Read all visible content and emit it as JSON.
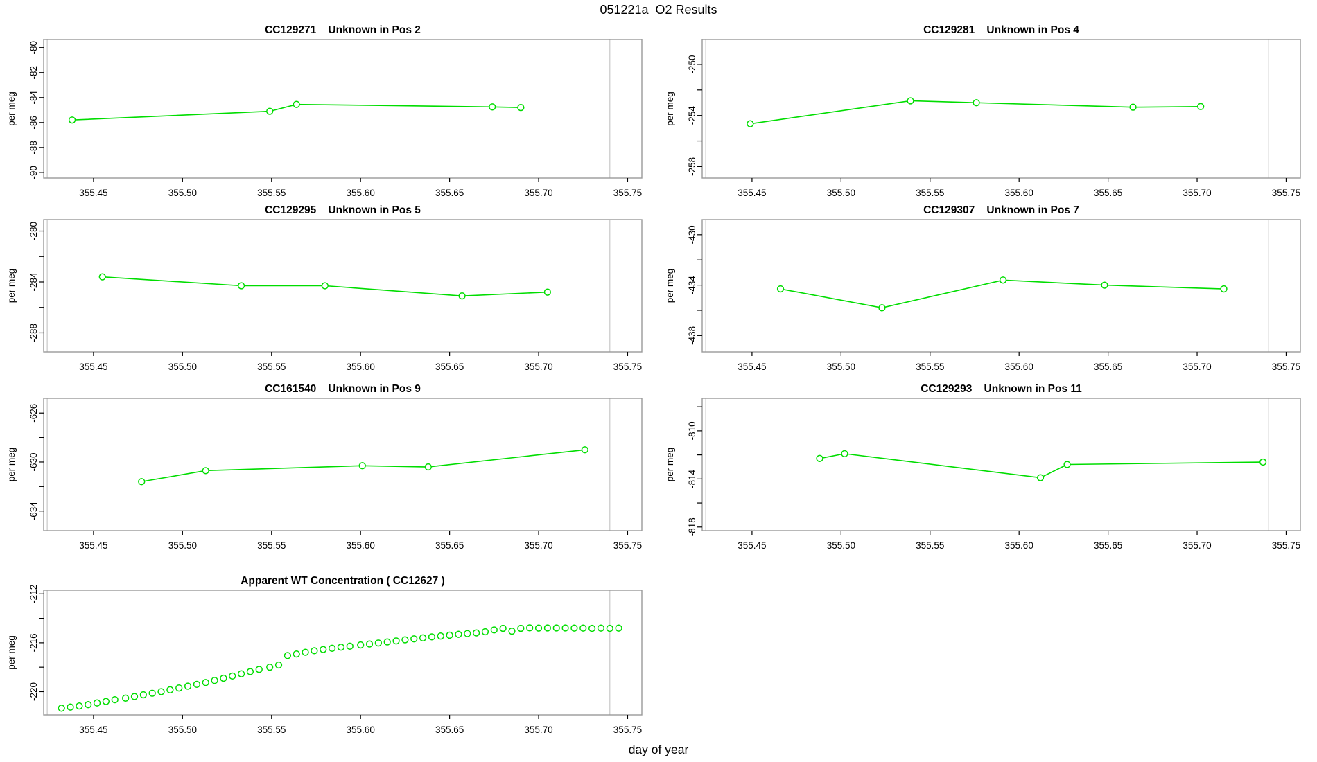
{
  "page": {
    "title": "051221a  O2 Results",
    "xlabel": "day of year",
    "ylabel": "per meg"
  },
  "colors": {
    "series": "#00dd00",
    "frame": "#999999",
    "vline": "#cccccc",
    "text": "#000000",
    "background": "#ffffff"
  },
  "x_axis": {
    "xlim": [
      355.422,
      355.758
    ],
    "ticks": [
      355.45,
      355.5,
      355.55,
      355.6,
      355.65,
      355.7,
      355.75
    ],
    "vlines": [
      355.424,
      355.74
    ]
  },
  "chart_data": [
    {
      "type": "line",
      "title": "CC129271    Unknown in Pos 2",
      "ylabel": "per meg",
      "ylim": [
        -90.45,
        -79.35
      ],
      "yticks_major": [
        -80,
        -82,
        -84,
        -86,
        -88,
        -90
      ],
      "yticks_minor": [],
      "x": [
        355.438,
        355.549,
        355.564,
        355.674,
        355.69
      ],
      "y": [
        -85.8,
        -85.1,
        -84.55,
        -84.75,
        -84.8
      ]
    },
    {
      "type": "line",
      "title": "CC129281    Unknown in Pos 4",
      "ylabel": "per meg",
      "ylim": [
        -258.9,
        -248.05
      ],
      "yticks_major": [
        -250,
        -254,
        -258
      ],
      "yticks_minor": [
        -252,
        -256
      ],
      "x": [
        355.449,
        355.539,
        355.576,
        355.664,
        355.702
      ],
      "y": [
        -254.65,
        -252.85,
        -253.0,
        -253.35,
        -253.3
      ]
    },
    {
      "type": "line",
      "title": "CC129295    Unknown in Pos 5",
      "ylabel": "per meg",
      "ylim": [
        -289.5,
        -279.1
      ],
      "yticks_major": [
        -280,
        -284,
        -288
      ],
      "yticks_minor": [
        -282,
        -286
      ],
      "x": [
        355.455,
        355.533,
        355.58,
        355.657,
        355.705
      ],
      "y": [
        -283.6,
        -284.3,
        -284.3,
        -285.1,
        -284.8
      ]
    },
    {
      "type": "line",
      "title": "CC129307    Unknown in Pos 7",
      "ylabel": "per meg",
      "ylim": [
        -439.3,
        -428.8
      ],
      "yticks_major": [
        -430,
        -434,
        -438
      ],
      "yticks_minor": [
        -432,
        -436
      ],
      "x": [
        355.466,
        355.523,
        355.591,
        355.648,
        355.715
      ],
      "y": [
        -434.3,
        -435.8,
        -433.6,
        -434.0,
        -434.3
      ]
    },
    {
      "type": "line",
      "title": "CC161540    Unknown in Pos 9",
      "ylabel": "per meg",
      "ylim": [
        -635.6,
        -624.8
      ],
      "yticks_major": [
        -626,
        -630,
        -634
      ],
      "yticks_minor": [
        -628,
        -632
      ],
      "x": [
        355.477,
        355.513,
        355.601,
        355.638,
        355.726
      ],
      "y": [
        -631.6,
        -630.7,
        -630.3,
        -630.4,
        -629.0
      ]
    },
    {
      "type": "line",
      "title": "CC129293    Unknown in Pos 11",
      "ylabel": "per meg",
      "ylim": [
        -818.3,
        -807.3
      ],
      "yticks_major": [
        -810,
        -814,
        -818
      ],
      "yticks_minor": [
        -808,
        -812,
        -816
      ],
      "x": [
        355.488,
        355.502,
        355.612,
        355.627,
        355.737
      ],
      "y": [
        -812.3,
        -811.9,
        -813.9,
        -812.8,
        -812.6
      ]
    },
    {
      "type": "scatter",
      "title": "Apparent WT Concentration ( CC12627 )",
      "ylabel": "per meg",
      "ylim": [
        -221.9,
        -211.7
      ],
      "yticks_major": [
        -212,
        -216,
        -220
      ],
      "yticks_minor": [
        -214,
        -218
      ],
      "x": [
        355.432,
        355.437,
        355.442,
        355.447,
        355.452,
        355.457,
        355.462,
        355.468,
        355.473,
        355.478,
        355.483,
        355.488,
        355.493,
        355.498,
        355.503,
        355.508,
        355.513,
        355.518,
        355.523,
        355.528,
        355.533,
        355.538,
        355.543,
        355.549,
        355.554,
        355.559,
        355.564,
        355.569,
        355.574,
        355.579,
        355.584,
        355.589,
        355.594,
        355.6,
        355.605,
        355.61,
        355.615,
        355.62,
        355.625,
        355.63,
        355.635,
        355.64,
        355.645,
        355.65,
        355.655,
        355.66,
        355.665,
        355.67,
        355.675,
        355.68,
        355.685,
        355.69,
        355.695,
        355.7,
        355.705,
        355.71,
        355.715,
        355.72,
        355.725,
        355.73,
        355.735,
        355.74,
        355.745
      ],
      "y": [
        -221.35,
        -221.26,
        -221.17,
        -221.06,
        -220.92,
        -220.8,
        -220.66,
        -220.53,
        -220.4,
        -220.26,
        -220.13,
        -220.0,
        -219.85,
        -219.7,
        -219.55,
        -219.4,
        -219.25,
        -219.08,
        -218.9,
        -218.72,
        -218.54,
        -218.36,
        -218.18,
        -218.0,
        -217.82,
        -217.05,
        -216.92,
        -216.78,
        -216.65,
        -216.55,
        -216.45,
        -216.36,
        -216.28,
        -216.18,
        -216.1,
        -216.02,
        -215.93,
        -215.85,
        -215.76,
        -215.68,
        -215.6,
        -215.52,
        -215.45,
        -215.38,
        -215.31,
        -215.25,
        -215.19,
        -215.1,
        -214.95,
        -214.82,
        -215.05,
        -214.82,
        -214.78,
        -214.8,
        -214.79,
        -214.79,
        -214.79,
        -214.8,
        -214.8,
        -214.82,
        -214.8,
        -214.82,
        -214.8
      ]
    }
  ]
}
